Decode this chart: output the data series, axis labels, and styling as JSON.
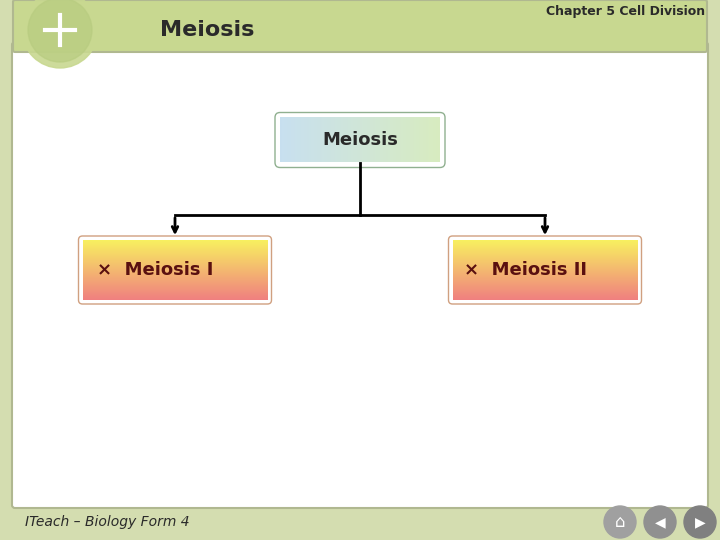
{
  "title_chapter": "Chapter 5 Cell Division",
  "title_main": "Meiosis",
  "footer": "ITeach – Biology Form 4",
  "bg_outer": "#d4ddb0",
  "bg_inner": "#ffffff",
  "root_label": "Meiosis",
  "root_box_color_left": "#c8e0f0",
  "root_box_color_right": "#d8ecc0",
  "child_labels": [
    "Meiosis I",
    "Meiosis II"
  ],
  "child_box_color_top": "#f8f060",
  "child_box_color_bottom": "#f08080",
  "header_bg": "#c8d890",
  "header_stripe": "#b0c870",
  "circle_color": "#c8d890",
  "nav_button_color": "#909090"
}
